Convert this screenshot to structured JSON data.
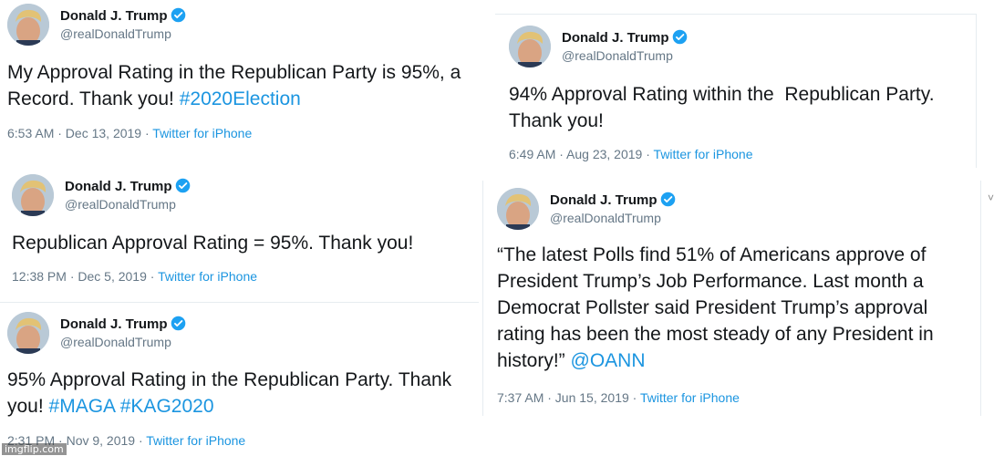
{
  "colors": {
    "link": "#1b95e0",
    "verified": "#1da1f2",
    "meta": "#657786"
  },
  "tweets": [
    {
      "name": "Donald J. Trump",
      "handle": "@realDonaldTrump",
      "text_parts": [
        "My Approval Rating in the Republican Party is 95%, a",
        "Record. Thank you! "
      ],
      "hashtags": [
        "#2020Election"
      ],
      "time": "6:53 AM · Dec 13, 2019",
      "source": "Twitter for iPhone"
    },
    {
      "name": "Donald J. Trump",
      "handle": "@realDonaldTrump",
      "text_parts": [
        "94% Approval Rating within the  Republican Party.",
        "Thank you!"
      ],
      "time": "6:49 AM · Aug 23, 2019",
      "source": "Twitter for iPhone"
    },
    {
      "name": "Donald J. Trump",
      "handle": "@realDonaldTrump",
      "text_parts": [
        "Republican Approval Rating = 95%. Thank you!"
      ],
      "time": "12:38 PM · Dec 5, 2019",
      "source": "Twitter for iPhone"
    },
    {
      "name": "Donald J. Trump",
      "handle": "@realDonaldTrump",
      "text_parts": [
        "“The latest Polls find 51% of Americans approve of",
        "President Trump’s Job Performance. Last month a",
        "Democrat Pollster said President Trump’s approval",
        "rating has been the most steady of any President in",
        "history!” "
      ],
      "mention": "@OANN",
      "time": "7:37 AM · Jun 15, 2019",
      "source": "Twitter for iPhone"
    },
    {
      "name": "Donald J. Trump",
      "handle": "@realDonaldTrump",
      "text_parts": [
        "95% Approval Rating in the Republican Party. Thank",
        "you! "
      ],
      "hashtags": [
        "#MAGA",
        "#KAG2020"
      ],
      "time": "2:31 PM · Nov 9, 2019",
      "source": "Twitter for iPhone"
    }
  ],
  "separator": " · ",
  "watermark": "imgflip.com",
  "edge_mark": "˅"
}
